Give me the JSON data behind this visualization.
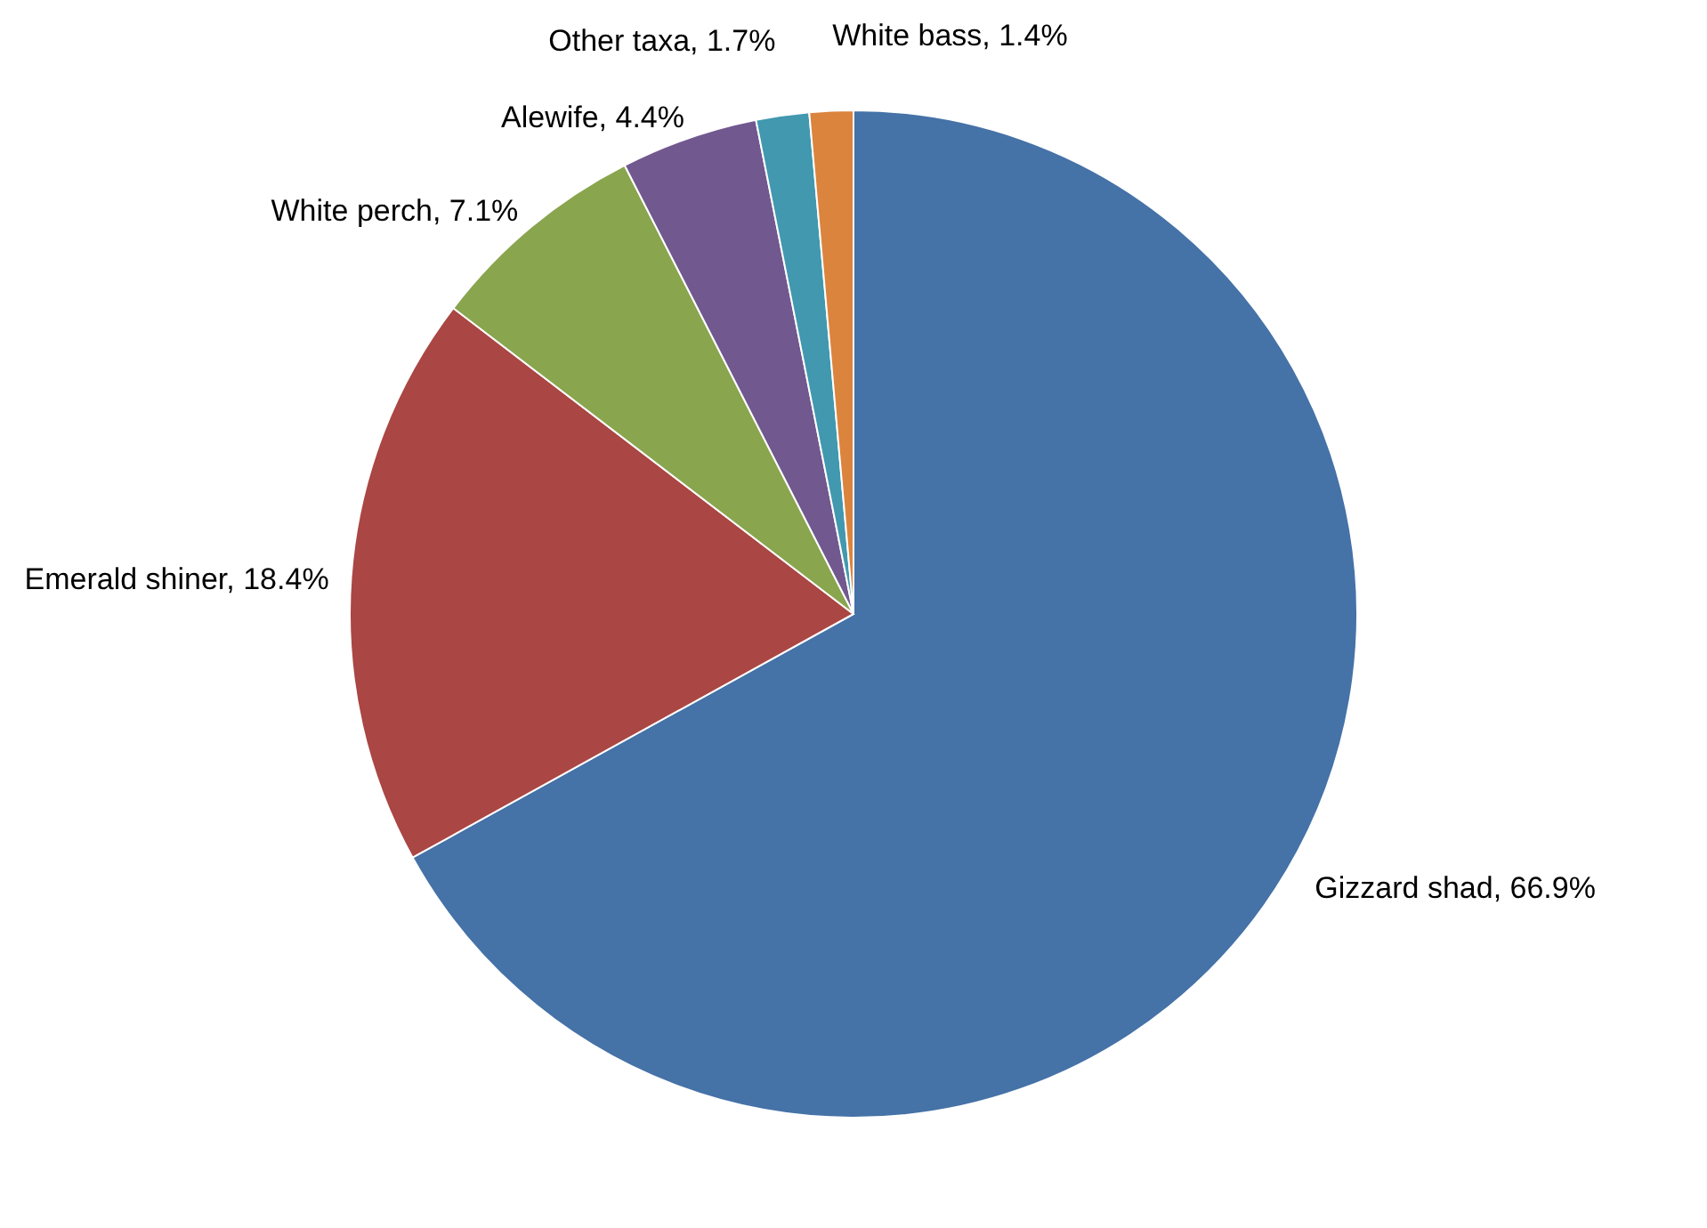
{
  "chart_data": {
    "type": "pie",
    "categories": [
      "Gizzard shad",
      "Emerald shiner",
      "White perch",
      "Alewife",
      "Other taxa",
      "White bass"
    ],
    "values": [
      66.9,
      18.4,
      7.1,
      4.4,
      1.7,
      1.4
    ],
    "value_labels": [
      "66.9%",
      "18.4%",
      "7.1%",
      "4.4%",
      "1.7%",
      "1.4%"
    ],
    "colors": [
      "#4572a7",
      "#aa4643",
      "#89a54e",
      "#71588f",
      "#4198af",
      "#db843d"
    ]
  }
}
